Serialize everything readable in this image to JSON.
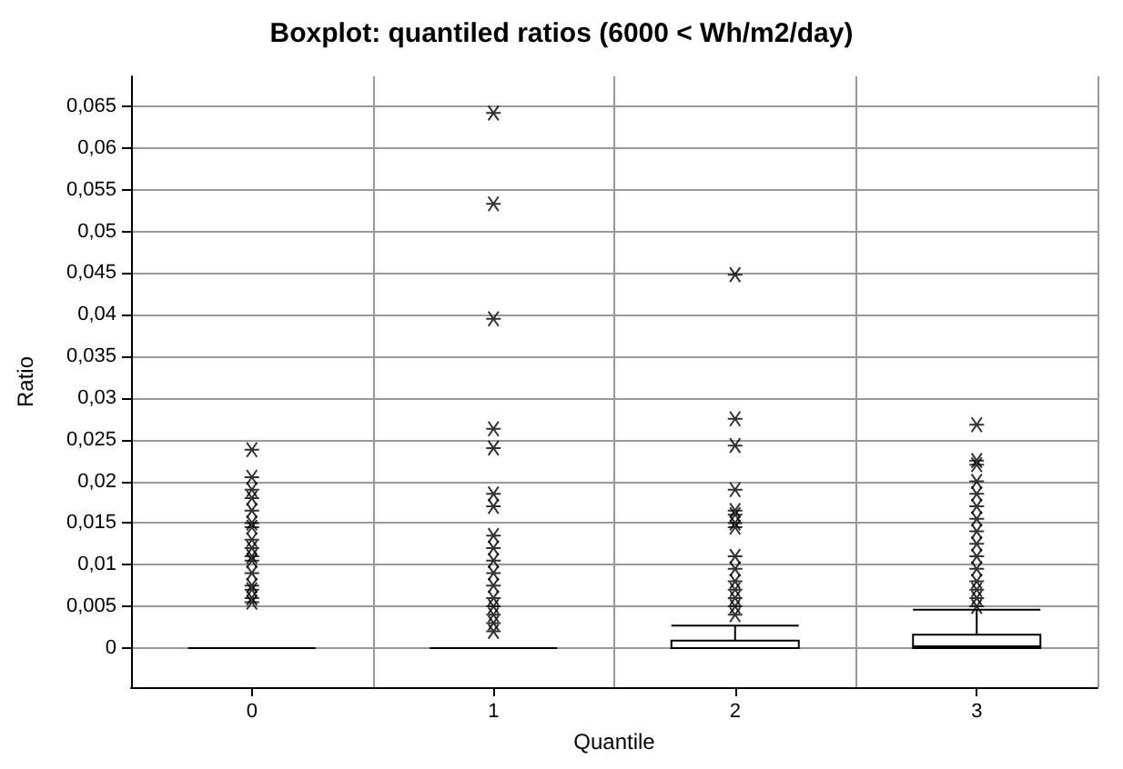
{
  "chart_data": {
    "type": "box",
    "title": "Boxplot: quantiled ratios (6000 < Wh/m2/day)",
    "xlabel": "Quantile",
    "ylabel": "Ratio",
    "categories": [
      "0",
      "1",
      "2",
      "3"
    ],
    "series": [
      {
        "color": "#000000",
        "boxes": [
          {
            "low": 0,
            "q1": 0,
            "median": 0,
            "q3": 0,
            "high": 0,
            "outliers": [
              0.0238,
              0.0205,
              0.019,
              0.018,
              0.0165,
              0.015,
              0.0145,
              0.013,
              0.012,
              0.011,
              0.0105,
              0.009,
              0.0075,
              0.007,
              0.006,
              0.0055
            ]
          },
          {
            "low": 0,
            "q1": 0,
            "median": 0,
            "q3": 0,
            "high": 0,
            "outliers": [
              0.0642,
              0.0533,
              0.0395,
              0.0263,
              0.024,
              0.0185,
              0.017,
              0.0135,
              0.012,
              0.0105,
              0.009,
              0.0075,
              0.006,
              0.005,
              0.004,
              0.003,
              0.002
            ]
          },
          {
            "low": 0,
            "q1": 0,
            "median": 0,
            "q3": 0.0009,
            "high": 0.0027,
            "outliers": [
              0.0448,
              0.0275,
              0.0243,
              0.019,
              0.0165,
              0.016,
              0.015,
              0.0145,
              0.011,
              0.0095,
              0.008,
              0.007,
              0.006,
              0.005,
              0.004
            ]
          },
          {
            "low": 0,
            "q1": 0,
            "median": 0.0002,
            "q3": 0.0016,
            "high": 0.0046,
            "outliers": [
              0.0268,
              0.0225,
              0.022,
              0.02,
              0.0185,
              0.017,
              0.0155,
              0.014,
              0.0125,
              0.011,
              0.0095,
              0.008,
              0.007,
              0.006,
              0.005
            ]
          }
        ]
      }
    ],
    "ylim": [
      -0.0047,
      0.0686
    ],
    "yticks": [
      0,
      {
        "value": 0.005,
        "label": "0,005"
      },
      {
        "value": 0.01,
        "label": "0,01"
      },
      {
        "value": 0.015,
        "label": "0,015"
      },
      {
        "value": 0.02,
        "label": "0,02"
      },
      {
        "value": 0.025,
        "label": "0,025"
      },
      {
        "value": 0.03,
        "label": "0,03"
      },
      {
        "value": 0.035,
        "label": "0,035"
      },
      {
        "value": 0.04,
        "label": "0,04"
      },
      {
        "value": 0.045,
        "label": "0,045"
      },
      {
        "value": 0.05,
        "label": "0,05"
      },
      {
        "value": 0.055,
        "label": "0,055"
      },
      {
        "value": 0.06,
        "label": "0,06"
      },
      {
        "value": 0.065,
        "label": "0,065"
      }
    ],
    "grid": true,
    "marker": "star"
  }
}
